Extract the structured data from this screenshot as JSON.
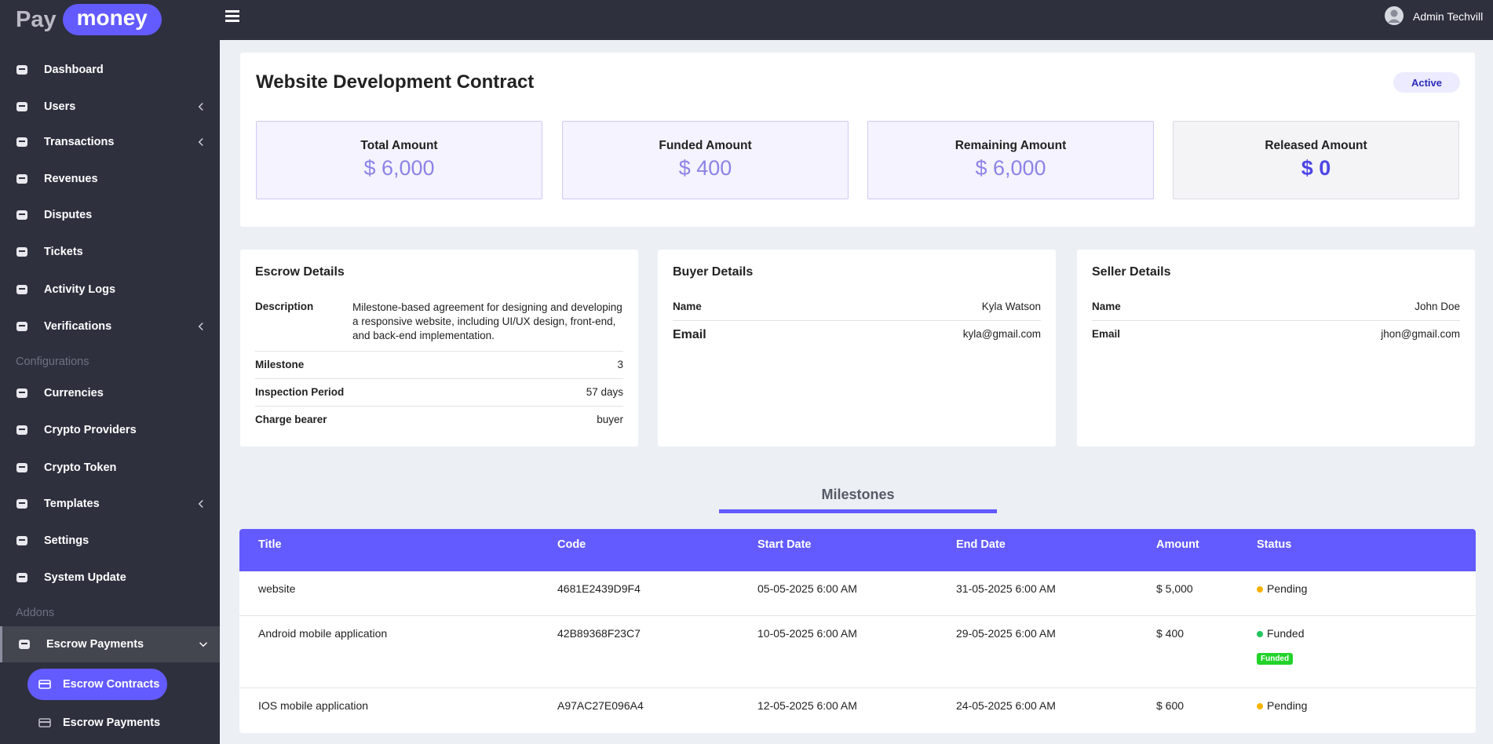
{
  "brand": {
    "pay": "Pay",
    "money": "money"
  },
  "topbar": {
    "user": "Admin Techvill"
  },
  "sidebar": {
    "items": [
      {
        "label": "Dashboard"
      },
      {
        "label": "Users",
        "caret": true
      },
      {
        "label": "Transactions",
        "caret": true
      },
      {
        "label": "Revenues"
      },
      {
        "label": "Disputes"
      },
      {
        "label": "Tickets"
      },
      {
        "label": "Activity Logs"
      },
      {
        "label": "Verifications",
        "caret": true
      },
      {
        "heading": "Configurations"
      },
      {
        "label": "Currencies"
      },
      {
        "label": "Crypto Providers"
      },
      {
        "label": "Crypto Token"
      },
      {
        "label": "Templates",
        "caret": true
      },
      {
        "label": "Settings"
      },
      {
        "label": "System Update"
      },
      {
        "heading": "Addons"
      },
      {
        "label": "Escrow Payments",
        "caret": true,
        "open": true,
        "active": true
      },
      {
        "label": "Escrow Contracts",
        "sub": true,
        "selected": true
      },
      {
        "label": "Escrow Payments",
        "sub": true
      }
    ]
  },
  "contract": {
    "title": "Website Development Contract",
    "status": "Active",
    "stats": [
      {
        "label": "Total Amount",
        "value": "$ 6,000"
      },
      {
        "label": "Funded Amount",
        "value": "$ 400"
      },
      {
        "label": "Remaining Amount",
        "value": "$ 6,000"
      },
      {
        "label": "Released Amount",
        "value": "$ 0",
        "emphasis": true
      }
    ]
  },
  "details": [
    {
      "title": "Escrow Details",
      "rows": [
        [
          "Description",
          "Milestone-based agreement for designing and developing a responsive website, including UI/UX design, front-end, and back-end implementation."
        ],
        [
          "Milestone",
          "3"
        ],
        [
          "Inspection Period",
          "57 days"
        ],
        [
          "Charge bearer",
          "buyer"
        ]
      ]
    },
    {
      "title": "Buyer Details",
      "rows": [
        [
          "Name",
          "Kyla Watson"
        ],
        [
          "Email",
          "kyla@gmail.com"
        ]
      ]
    },
    {
      "title": "Seller Details",
      "rows": [
        [
          "Name",
          "John Doe"
        ],
        [
          "Email",
          "jhon@gmail.com"
        ]
      ]
    }
  ],
  "milestones": {
    "heading": "Milestones",
    "columns": [
      "Title",
      "Code",
      "Start Date",
      "End Date",
      "Amount",
      "Status"
    ],
    "rows": [
      {
        "cells": [
          "website",
          "4681E2439D9F4",
          "05-05-2025 6:00 AM",
          "31-05-2025 6:00 AM",
          "$ 5,000",
          "Pending"
        ],
        "dot_color": "#f5b301"
      },
      {
        "cells": [
          "Android mobile application",
          "42B89368F23C7",
          "10-05-2025 6:00 AM",
          "29-05-2025 6:00 AM",
          "$ 400",
          "Funded"
        ],
        "dot_color": "#22c55e",
        "badge": "Funded"
      },
      {
        "cells": [
          "IOS mobile application",
          "A97AC27E096A4",
          "12-05-2025 6:00 AM",
          "24-05-2025 6:00 AM",
          "$ 600",
          "Pending"
        ],
        "dot_color": "#f5b301"
      }
    ]
  }
}
